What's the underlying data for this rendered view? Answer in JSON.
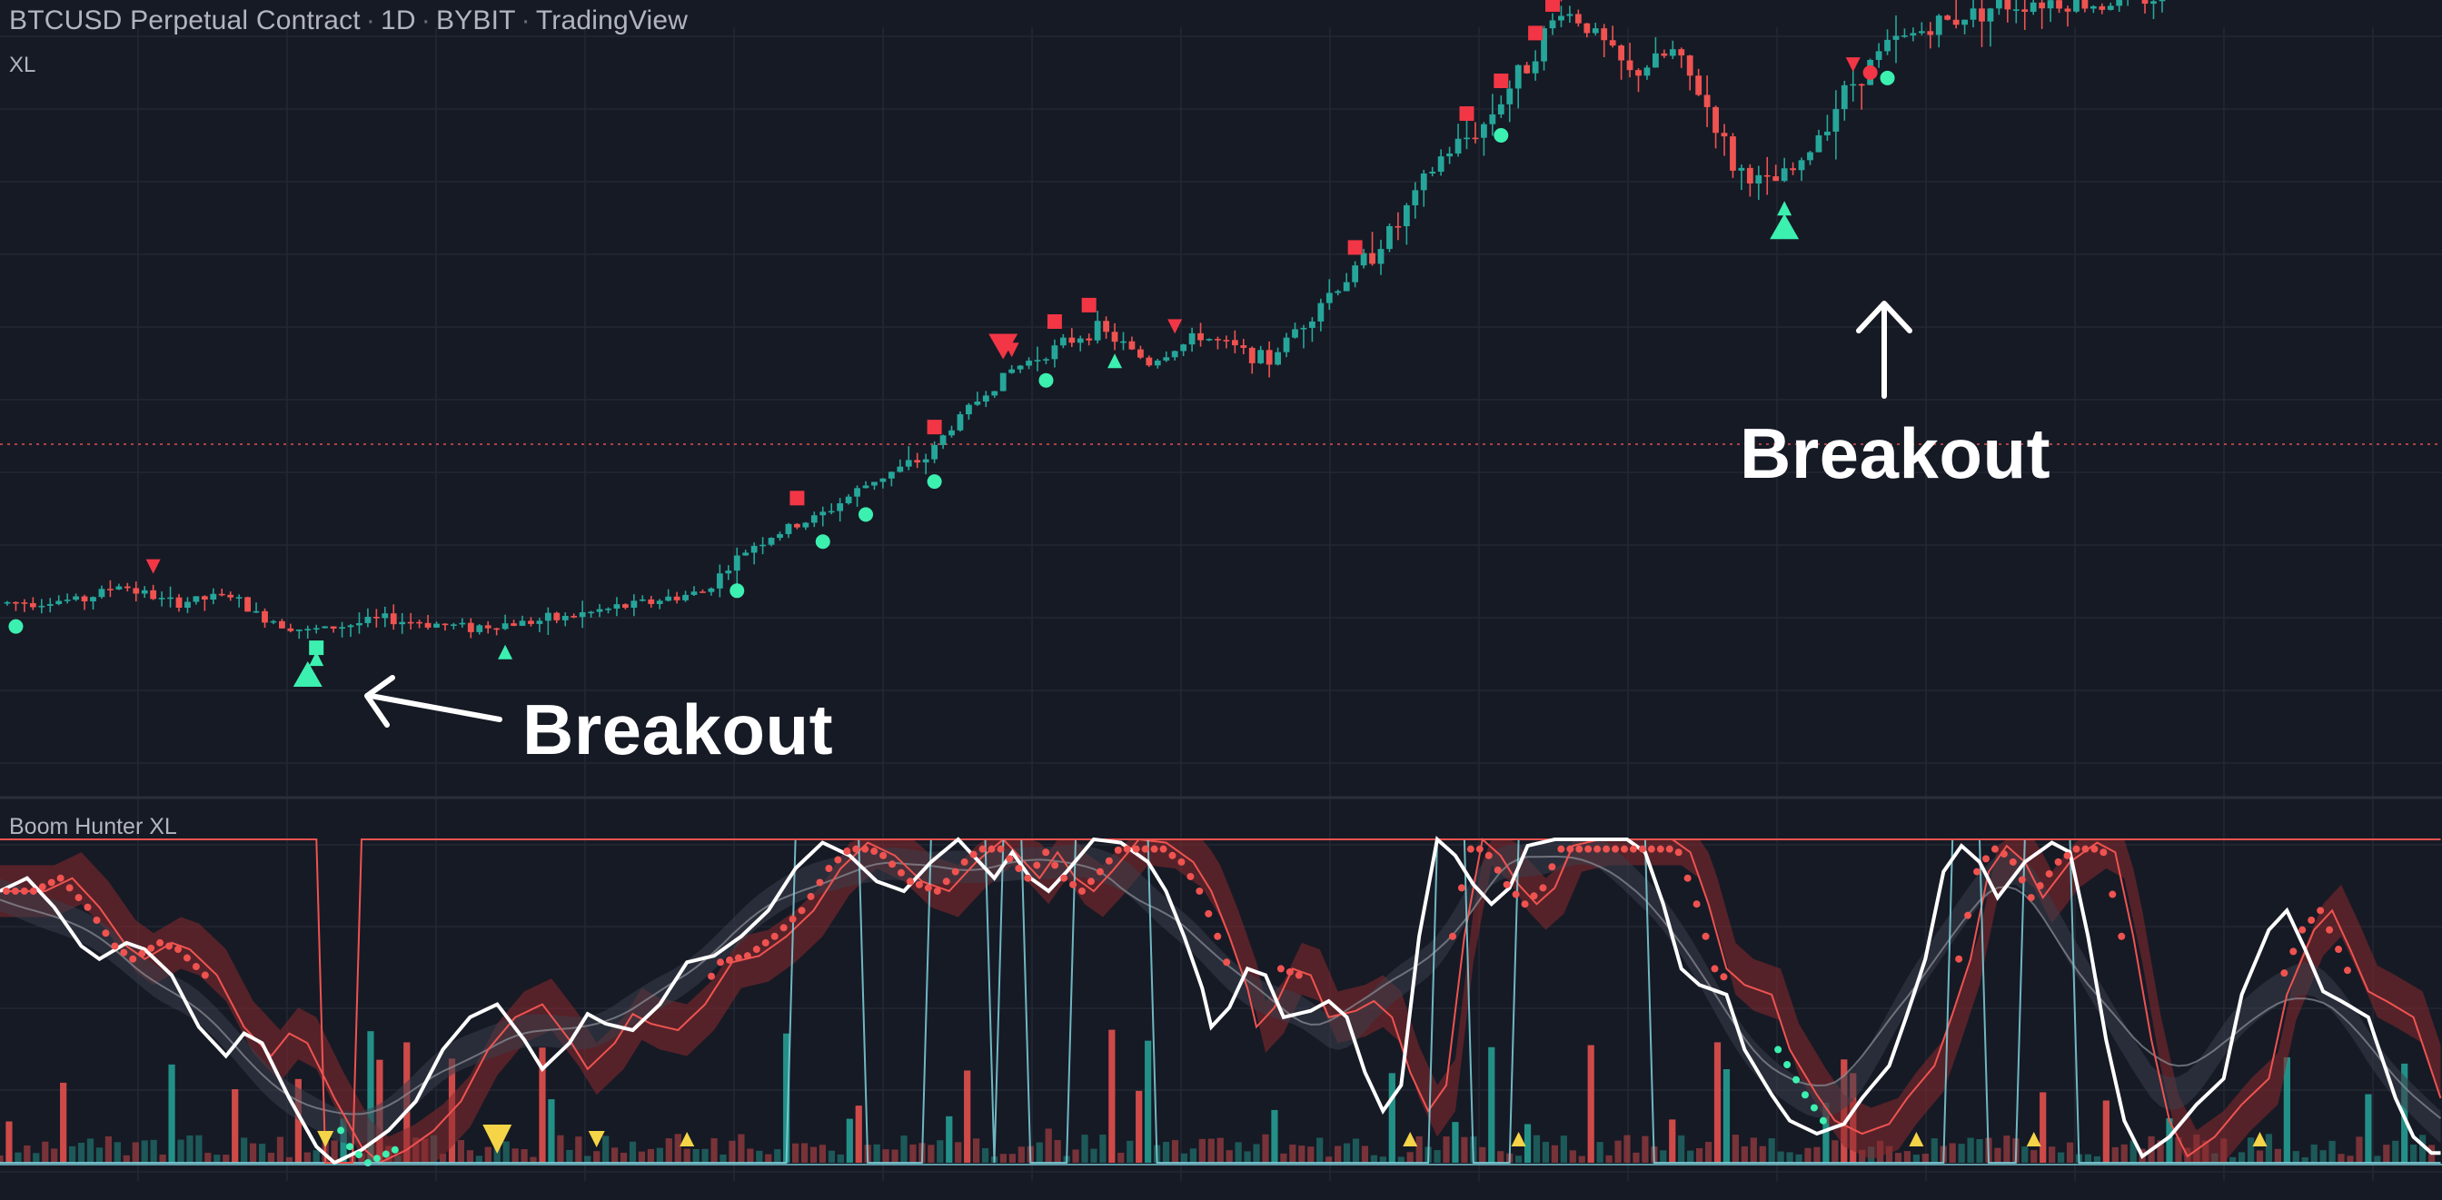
{
  "header": {
    "symbol": "BTCUSD Perpetual Contract",
    "interval": "1D",
    "exchange": "BYBIT",
    "publisher": "TradingView",
    "separator": "·",
    "indicator_tag": "XL"
  },
  "oscillator": {
    "title": "Boom Hunter XL"
  },
  "annotations": [
    {
      "text": "Breakout",
      "points_to": "buy signal near index 32"
    },
    {
      "text": "Breakout",
      "points_to": "buy signal near index 172"
    }
  ],
  "colors": {
    "background": "#161a25",
    "grid": "#232733",
    "bull": "#26a69a",
    "bear": "#ef5350",
    "signal_green": "#3cf0b0",
    "signal_red": "#f23645",
    "yellow": "#f5d547",
    "white": "#ffffff",
    "cyan": "#7fd4de",
    "band": "#8a2a2e",
    "price_line": "#ef5350"
  },
  "chart_data": [
    {
      "type": "candlestick",
      "title": "BTCUSD Perpetual Contract · 1D · BYBIT",
      "series": "BTCUSD daily price (log-like scaled)",
      "price_control_points": [
        [
          0,
          7.6
        ],
        [
          10,
          7.7
        ],
        [
          14,
          8.1
        ],
        [
          20,
          7.6
        ],
        [
          27,
          7.8
        ],
        [
          30,
          7.3
        ],
        [
          36,
          6.9
        ],
        [
          45,
          7.2
        ],
        [
          55,
          7.0
        ],
        [
          65,
          7.2
        ],
        [
          75,
          7.6
        ],
        [
          82,
          7.9
        ],
        [
          88,
          9.3
        ],
        [
          96,
          10.3
        ],
        [
          102,
          11.6
        ],
        [
          108,
          12.5
        ],
        [
          112,
          14.4
        ],
        [
          118,
          16.9
        ],
        [
          128,
          19.5
        ],
        [
          134,
          17.3
        ],
        [
          140,
          19.0
        ],
        [
          148,
          17.4
        ],
        [
          154,
          21.4
        ],
        [
          158,
          23.7
        ],
        [
          163,
          27.8
        ],
        [
          168,
          34.9
        ],
        [
          173,
          39.1
        ],
        [
          178,
          48.2
        ],
        [
          182,
          58.1
        ],
        [
          185,
          55.0
        ],
        [
          190,
          46.4
        ],
        [
          195,
          50.2
        ],
        [
          199,
          41.6
        ],
        [
          202,
          34.0
        ],
        [
          206,
          31.7
        ],
        [
          210,
          34.0
        ],
        [
          215,
          43.8
        ],
        [
          220,
          51.3
        ],
        [
          225,
          54.8
        ],
        [
          232,
          58.5
        ],
        [
          238,
          60.0
        ],
        [
          244,
          59.0
        ],
        [
          252,
          61.0
        ]
      ],
      "bars": 252,
      "signals": {
        "green_circles": [
          1,
          85,
          95,
          100,
          108,
          121,
          174,
          219
        ],
        "green_triangles_up": [
          36,
          58,
          129,
          207
        ],
        "green_squares": [
          36
        ],
        "red_triangles_down": [
          17,
          117,
          136,
          181,
          215
        ],
        "red_squares": [
          92,
          108,
          122,
          126,
          157,
          170,
          174,
          178,
          180
        ],
        "red_circles": [
          217
        ],
        "large_red_triangle_down": [
          116
        ],
        "large_green_triangle_up": [
          35,
          207
        ]
      },
      "horizontal_line": "dotted red price line",
      "annotations": [
        "Breakout",
        "Breakout"
      ]
    },
    {
      "type": "oscillator",
      "title": "Boom Hunter XL",
      "ylim": [
        0,
        1
      ],
      "white_line_points": [
        [
          0,
          0.84
        ],
        [
          3,
          0.88
        ],
        [
          6,
          0.79
        ],
        [
          9,
          0.67
        ],
        [
          11,
          0.63
        ],
        [
          14,
          0.68
        ],
        [
          16,
          0.66
        ],
        [
          19,
          0.58
        ],
        [
          22,
          0.42
        ],
        [
          25,
          0.33
        ],
        [
          27,
          0.4
        ],
        [
          29,
          0.37
        ],
        [
          32,
          0.2
        ],
        [
          35,
          0.05
        ],
        [
          37,
          0.0
        ],
        [
          40,
          0.04
        ],
        [
          43,
          0.1
        ],
        [
          46,
          0.19
        ],
        [
          49,
          0.35
        ],
        [
          52,
          0.45
        ],
        [
          55,
          0.49
        ],
        [
          58,
          0.38
        ],
        [
          60,
          0.29
        ],
        [
          63,
          0.37
        ],
        [
          65,
          0.46
        ],
        [
          67,
          0.43
        ],
        [
          70,
          0.41
        ],
        [
          73,
          0.49
        ],
        [
          76,
          0.62
        ],
        [
          79,
          0.64
        ],
        [
          82,
          0.7
        ],
        [
          85,
          0.78
        ],
        [
          88,
          0.91
        ],
        [
          91,
          0.99
        ],
        [
          94,
          0.95
        ],
        [
          97,
          0.87
        ],
        [
          100,
          0.84
        ],
        [
          103,
          0.93
        ],
        [
          106,
          1.0
        ],
        [
          108,
          0.94
        ],
        [
          110,
          0.88
        ],
        [
          112,
          0.96
        ],
        [
          114,
          0.88
        ],
        [
          116,
          0.84
        ],
        [
          118,
          0.9
        ],
        [
          121,
          1.0
        ],
        [
          124,
          0.99
        ],
        [
          127,
          0.93
        ],
        [
          129,
          0.84
        ],
        [
          131,
          0.7
        ],
        [
          133,
          0.54
        ],
        [
          134,
          0.42
        ],
        [
          136,
          0.48
        ],
        [
          138,
          0.6
        ],
        [
          140,
          0.58
        ],
        [
          142,
          0.45
        ],
        [
          145,
          0.47
        ],
        [
          147,
          0.5
        ],
        [
          149,
          0.45
        ],
        [
          151,
          0.28
        ],
        [
          153,
          0.16
        ],
        [
          155,
          0.24
        ],
        [
          157,
          0.7
        ],
        [
          159,
          1.0
        ],
        [
          161,
          0.95
        ],
        [
          163,
          0.86
        ],
        [
          165,
          0.8
        ],
        [
          167,
          0.85
        ],
        [
          169,
          0.98
        ],
        [
          172,
          1.0
        ],
        [
          176,
          1.0
        ],
        [
          180,
          1.0
        ],
        [
          182,
          0.96
        ],
        [
          184,
          0.8
        ],
        [
          186,
          0.6
        ],
        [
          188,
          0.55
        ],
        [
          191,
          0.52
        ],
        [
          193,
          0.35
        ],
        [
          196,
          0.21
        ],
        [
          198,
          0.13
        ],
        [
          201,
          0.09
        ],
        [
          204,
          0.12
        ],
        [
          206,
          0.2
        ],
        [
          209,
          0.3
        ],
        [
          211,
          0.46
        ],
        [
          213,
          0.63
        ],
        [
          215,
          0.9
        ],
        [
          217,
          0.98
        ],
        [
          219,
          0.93
        ],
        [
          221,
          0.82
        ],
        [
          224,
          0.93
        ],
        [
          227,
          0.99
        ],
        [
          229,
          0.96
        ],
        [
          231,
          0.7
        ],
        [
          233,
          0.38
        ],
        [
          235,
          0.13
        ],
        [
          237,
          0.02
        ],
        [
          240,
          0.08
        ],
        [
          243,
          0.18
        ],
        [
          246,
          0.26
        ],
        [
          248,
          0.52
        ],
        [
          251,
          0.72
        ],
        [
          253,
          0.78
        ],
        [
          255,
          0.66
        ],
        [
          257,
          0.53
        ],
        [
          259,
          0.5
        ],
        [
          262,
          0.45
        ],
        [
          265,
          0.2
        ],
        [
          267,
          0.08
        ],
        [
          269,
          0.03
        ]
      ],
      "red_signal_offset": 4,
      "top_red_line": "stepped line mostly at 1.0, drops to 0 around index 36",
      "cyan_line": "pulses to 1.0 at overbought zones",
      "yellow_markers": {
        "down": [
          36,
          55,
          66
        ],
        "up": [
          76,
          156,
          168,
          212,
          225,
          250
        ]
      },
      "volume_histogram": "mixed teal and red bars along bottom"
    }
  ]
}
